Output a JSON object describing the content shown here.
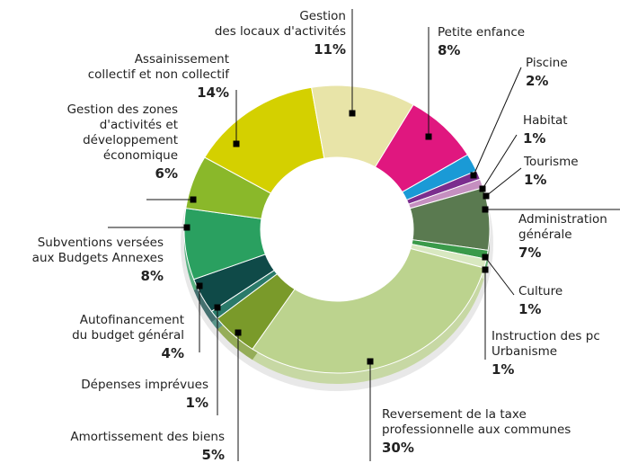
{
  "chart_data": {
    "type": "pie",
    "donut": true,
    "start_angle": 30,
    "categories": [
      "Petite enfance",
      "Piscine",
      "Habitat",
      "Tourisme",
      "Administration\ngénérale",
      "Culture",
      "Instruction des pc\nUrbanisme",
      "Reversement de la taxe\nprofessionnelle aux communes",
      "Amortissement des biens",
      "Dépenses imprévues",
      "Autofinancement\ndu budget général",
      "Subventions versées\naux  Budgets Annexes",
      "Gestion des zones\nd'activités et\ndéveloppement\néconomique",
      "Assainissement\ncollectif et non collectif",
      "Gestion\ndes locaux d'activités"
    ],
    "values": [
      8,
      2,
      1,
      1,
      7,
      1,
      1,
      30,
      5,
      1,
      4,
      8,
      6,
      14,
      11
    ],
    "value_labels": [
      "8%",
      "2%",
      "1%",
      "1%",
      "7%",
      "1%",
      "1%",
      "30%",
      "5%",
      "1%",
      "4%",
      "8%",
      "6%",
      "14%",
      "11%"
    ],
    "colors": [
      "#e0177f",
      "#1a9ad6",
      "#7b2d8e",
      "#c58fc0",
      "#5a7a50",
      "#3a9a4a",
      "#d8e8c0",
      "#bcd38e",
      "#7a9a2a",
      "#2a7a6a",
      "#0f4a48",
      "#2aa060",
      "#8ab82a",
      "#d4d000",
      "#e8e4a8"
    ]
  }
}
